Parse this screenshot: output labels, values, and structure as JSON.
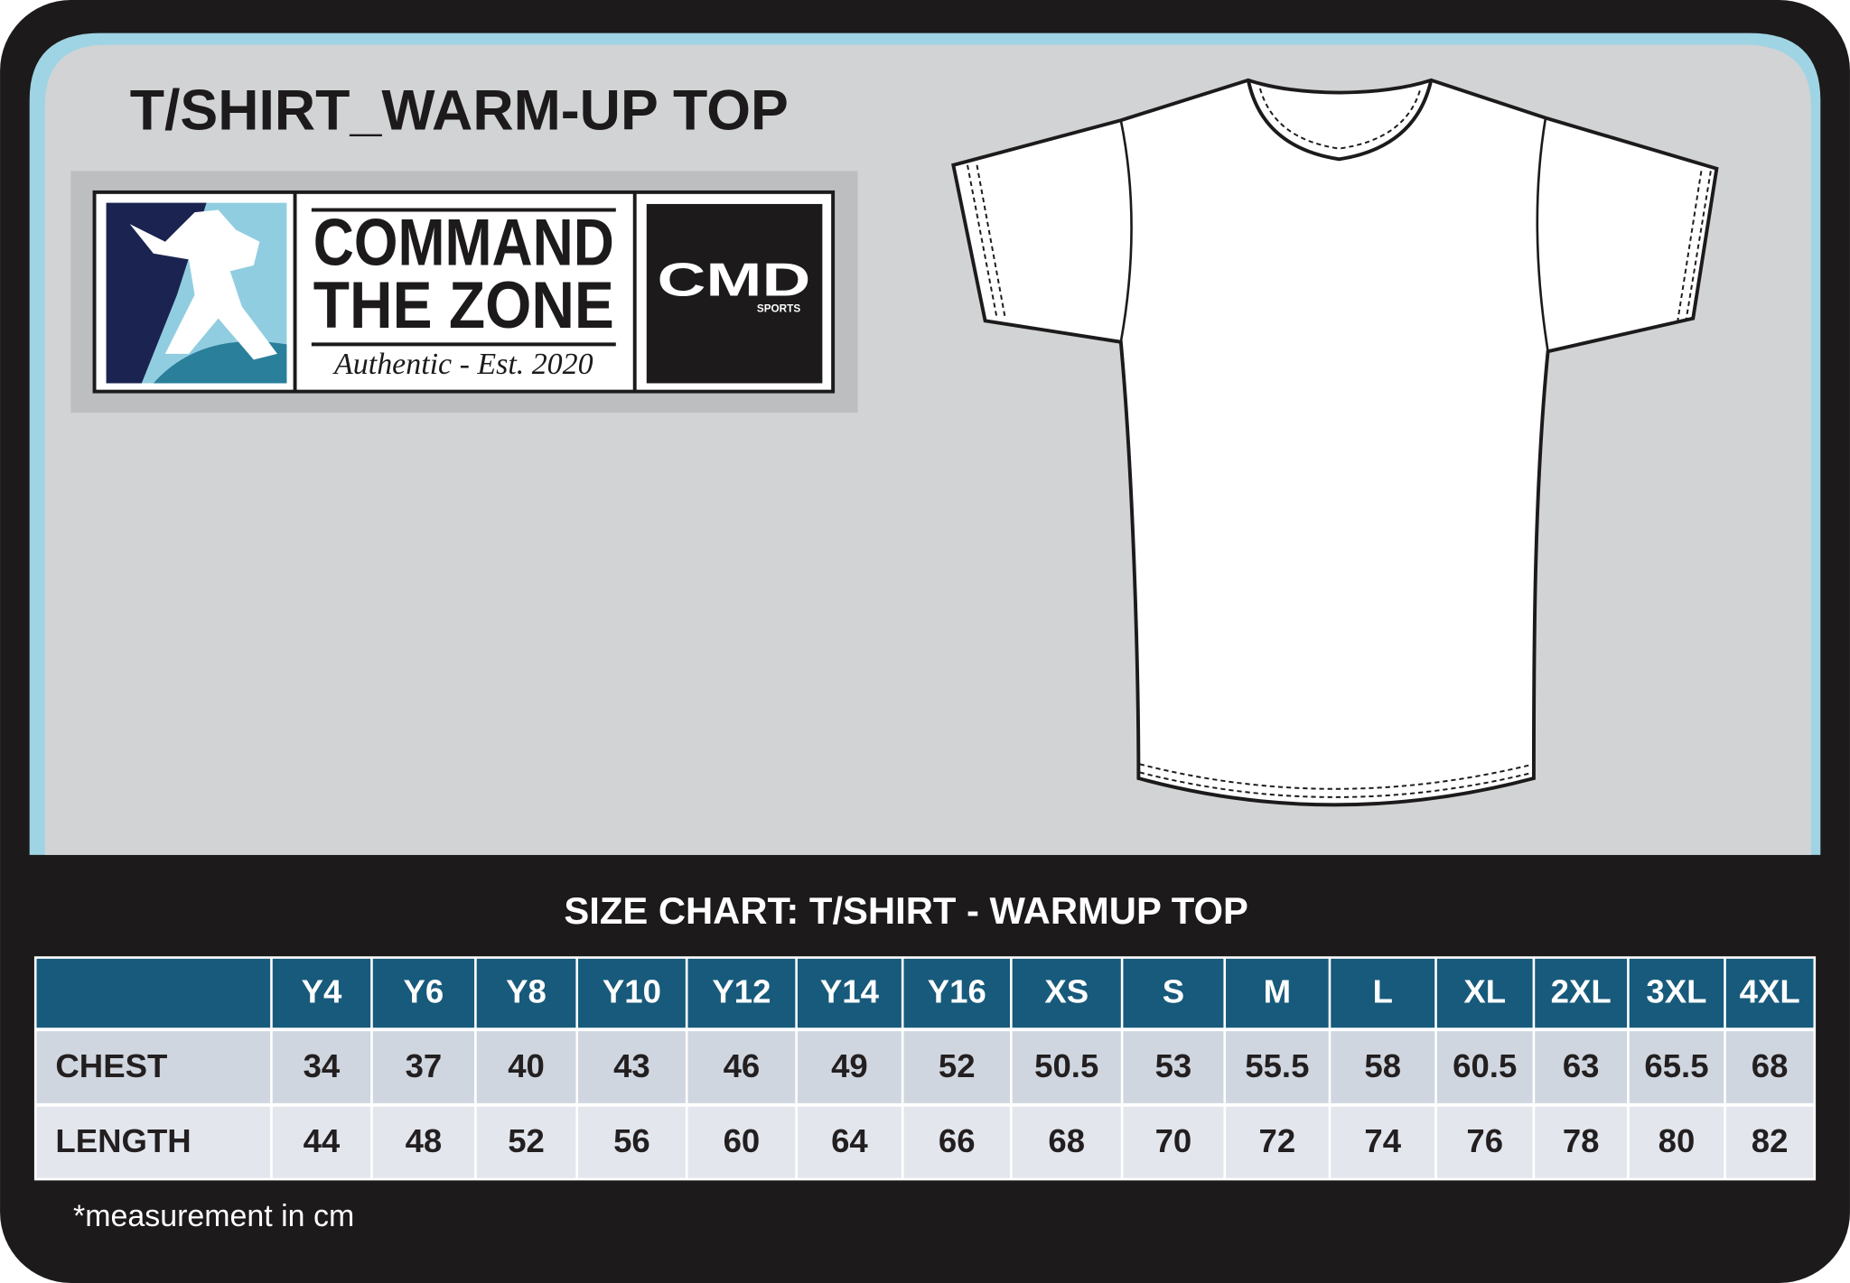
{
  "header": {
    "title": "T/SHIRT_WARM-UP TOP"
  },
  "logo": {
    "line1": "COMMAND",
    "line2": "THE ZONE",
    "tagline": "Authentic - Est. 2020",
    "brand": "CMD",
    "brand_sub": "SPORTS"
  },
  "size_chart": {
    "title": "SIZE CHART:  T/SHIRT - WARMUP TOP",
    "columns": [
      "Y4",
      "Y6",
      "Y8",
      "Y10",
      "Y12",
      "Y14",
      "Y16",
      "XS",
      "S",
      "M",
      "L",
      "XL",
      "2XL",
      "3XL",
      "4XL"
    ],
    "rows": [
      {
        "label": "CHEST",
        "values": [
          34,
          37,
          40,
          43,
          46,
          49,
          52,
          50.5,
          53,
          55.5,
          58,
          60.5,
          63,
          65.5,
          68
        ]
      },
      {
        "label": "LENGTH",
        "values": [
          44,
          48,
          52,
          56,
          60,
          64,
          66,
          68,
          70,
          72,
          74,
          76,
          78,
          80,
          82
        ]
      }
    ],
    "note": "*measurement in cm"
  }
}
